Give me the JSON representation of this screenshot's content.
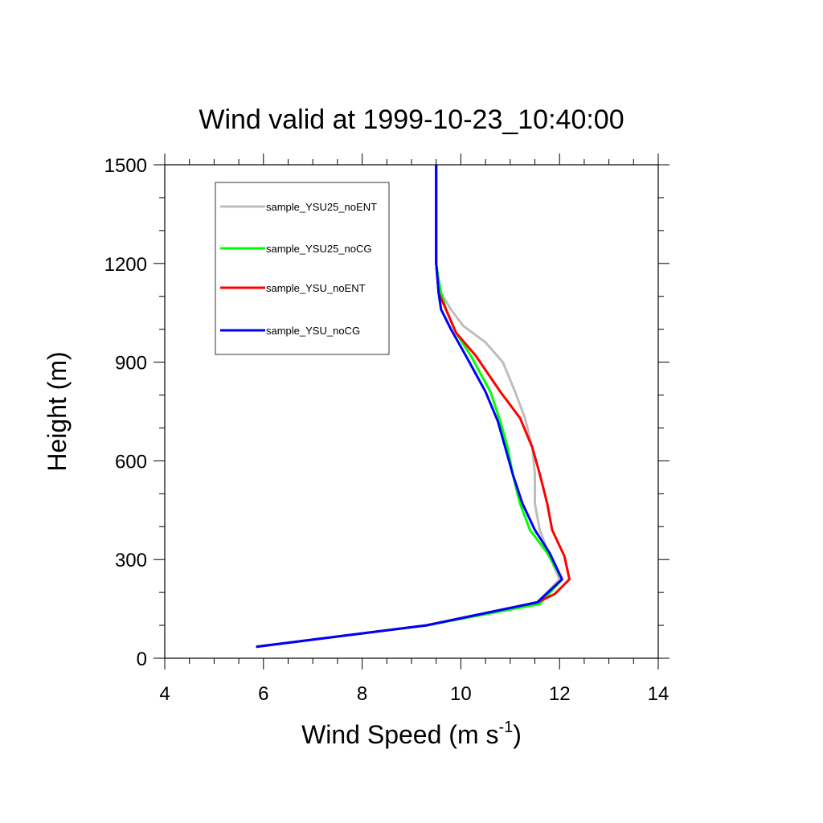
{
  "chart_data": {
    "type": "line",
    "title": "Wind valid at 1999-10-23_10:40:00",
    "xlabel": "Wind Speed (m s",
    "xlabel_superscript": "-1",
    "xlabel_suffix": ")",
    "ylabel": "Height (m)",
    "xlim": [
      4,
      14
    ],
    "ylim": [
      0,
      1500
    ],
    "x_ticks": [
      4,
      6,
      8,
      10,
      12,
      14
    ],
    "y_ticks": [
      0,
      300,
      600,
      900,
      1200,
      1500
    ],
    "legend_position": "top-left",
    "series": [
      {
        "name": "sample_YSU25_noENT",
        "color": "#bebebe",
        "x": [
          5.85,
          9.3,
          11.55,
          12.0,
          11.8,
          11.6,
          11.5,
          11.5,
          11.45,
          11.3,
          11.1,
          10.85,
          10.5,
          10.05,
          9.8,
          9.6,
          9.55,
          9.5,
          9.5,
          9.5,
          9.5
        ],
        "y": [
          35,
          100,
          170,
          240,
          310,
          390,
          470,
          560,
          640,
          730,
          810,
          900,
          960,
          1010,
          1060,
          1110,
          1150,
          1200,
          1250,
          1350,
          1500
        ]
      },
      {
        "name": "sample_YSU25_noCG",
        "color": "#00ff00",
        "x": [
          5.85,
          9.3,
          11.6,
          12.05,
          11.75,
          11.4,
          11.2,
          11.05,
          10.95,
          10.8,
          10.6,
          10.2,
          9.9,
          9.7,
          9.6,
          9.55,
          9.5,
          9.5
        ],
        "y": [
          35,
          100,
          165,
          240,
          320,
          390,
          470,
          560,
          640,
          720,
          810,
          920,
          990,
          1060,
          1110,
          1150,
          1200,
          1500
        ]
      },
      {
        "name": "sample_YSU_noENT",
        "color": "#ff0000",
        "x": [
          5.85,
          9.3,
          11.55,
          11.9,
          12.2,
          12.1,
          11.85,
          11.75,
          11.6,
          11.45,
          11.2,
          10.8,
          10.3,
          9.9,
          9.7,
          9.55,
          9.5,
          9.5
        ],
        "y": [
          35,
          100,
          170,
          195,
          240,
          310,
          390,
          470,
          560,
          640,
          730,
          810,
          920,
          990,
          1060,
          1110,
          1200,
          1500
        ]
      },
      {
        "name": "sample_YSU_noCG",
        "color": "#0000ff",
        "x": [
          5.85,
          9.3,
          11.55,
          12.05,
          11.8,
          11.5,
          11.25,
          11.05,
          10.9,
          10.75,
          10.5,
          10.1,
          9.8,
          9.6,
          9.55,
          9.5,
          9.5
        ],
        "y": [
          35,
          100,
          170,
          240,
          320,
          390,
          470,
          560,
          640,
          720,
          810,
          920,
          1000,
          1060,
          1110,
          1200,
          1500
        ]
      }
    ]
  }
}
